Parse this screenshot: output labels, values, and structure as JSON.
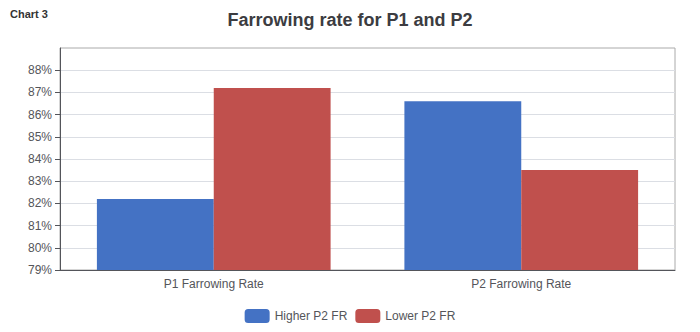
{
  "chart_data": {
    "type": "bar",
    "title": "Farrowing rate for P1 and P2",
    "annotations": [
      "Chart 3"
    ],
    "categories": [
      "P1 Farrowing Rate",
      "P2 Farrowing Rate"
    ],
    "series": [
      {
        "name": "Higher P2 FR",
        "color": "#4472C4",
        "values": [
          0.822,
          0.866
        ]
      },
      {
        "name": "Lower P2 FR",
        "color": "#C0504D",
        "values": [
          0.872,
          0.835
        ]
      }
    ],
    "ylim": [
      0.79,
      0.89
    ],
    "yticks": [
      {
        "value": 0.79,
        "label": "79%"
      },
      {
        "value": 0.8,
        "label": "80%"
      },
      {
        "value": 0.81,
        "label": "81%"
      },
      {
        "value": 0.82,
        "label": "82%"
      },
      {
        "value": 0.83,
        "label": "83%"
      },
      {
        "value": 0.84,
        "label": "84%"
      },
      {
        "value": 0.85,
        "label": "85%"
      },
      {
        "value": 0.86,
        "label": "86%"
      },
      {
        "value": 0.87,
        "label": "87%"
      },
      {
        "value": 0.88,
        "label": "88%"
      }
    ],
    "grid": true,
    "legend": "bottom"
  }
}
